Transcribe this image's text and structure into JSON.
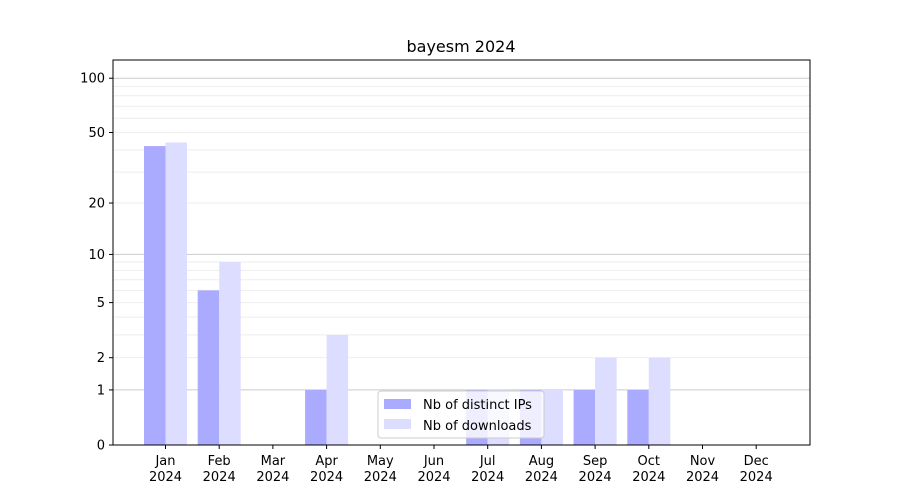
{
  "chart_data": {
    "type": "bar",
    "title": "bayesm 2024",
    "xlabel": "",
    "ylabel": "",
    "yscale": "symlog",
    "ylim": [
      0,
      120
    ],
    "yticks": [
      0,
      1,
      2,
      5,
      10,
      20,
      50,
      100
    ],
    "grid": true,
    "legend_position": "lower-center",
    "categories": [
      "Jan\n2024",
      "Feb\n2024",
      "Mar\n2024",
      "Apr\n2024",
      "May\n2024",
      "Jun\n2024",
      "Jul\n2024",
      "Aug\n2024",
      "Sep\n2024",
      "Oct\n2024",
      "Nov\n2024",
      "Dec\n2024"
    ],
    "series": [
      {
        "name": "Nb of distinct IPs",
        "color": "#aaaaff",
        "values": [
          42,
          6,
          0,
          1,
          0,
          0,
          1,
          1,
          1,
          1,
          0,
          0
        ]
      },
      {
        "name": "Nb of downloads",
        "color": "#ddddff",
        "values": [
          44,
          9,
          0,
          3,
          0,
          0,
          1,
          1,
          2,
          2,
          0,
          0
        ]
      }
    ]
  }
}
